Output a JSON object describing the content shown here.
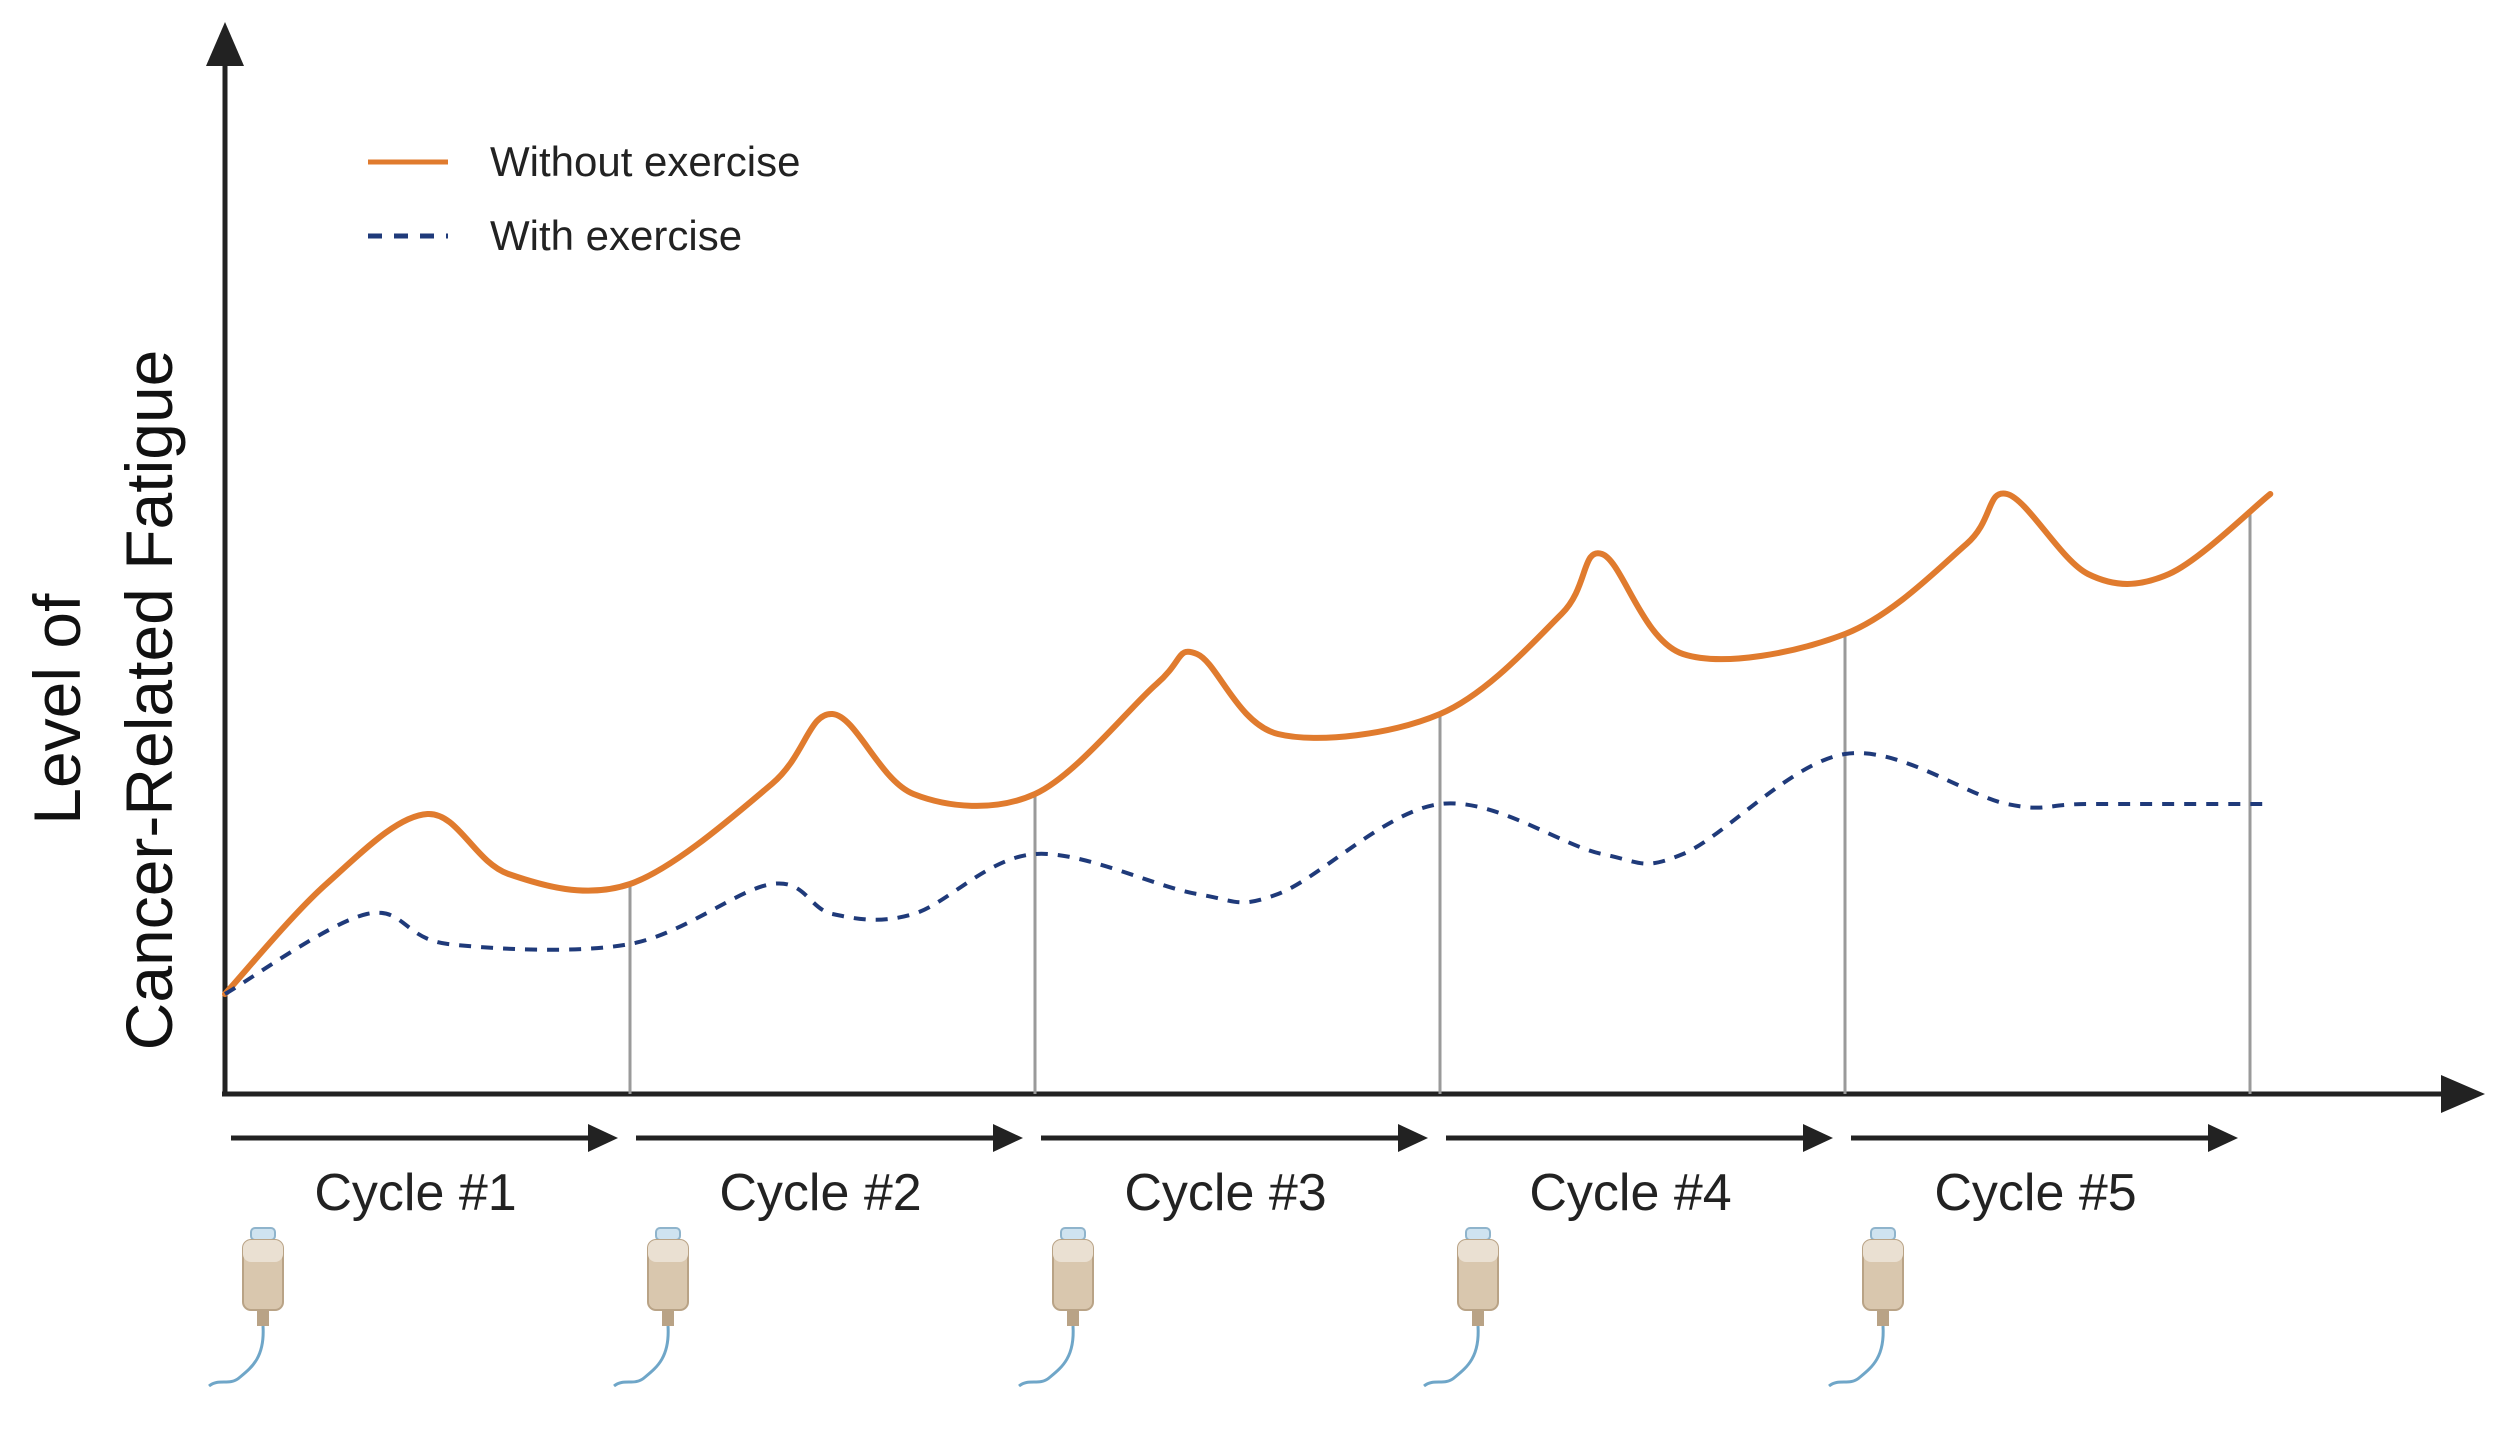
{
  "chart_data": {
    "type": "line",
    "title": "",
    "ylabel_lines": [
      "Level of",
      "Cancer-Related Fatigue"
    ],
    "xlabel": "",
    "categories": [
      "Cycle #1",
      "Cycle #2",
      "Cycle #3",
      "Cycle #4",
      "Cycle #5"
    ],
    "x_range": [
      0,
      5
    ],
    "y_range": [
      0,
      10
    ],
    "grid": false,
    "legend_position": "top-left",
    "series": [
      {
        "name": "Without exercise",
        "color": "#e07b2e",
        "style": "solid",
        "x": [
          0,
          0.25,
          0.5,
          0.7,
          1.0,
          1.35,
          1.5,
          1.7,
          2.0,
          2.3,
          2.4,
          2.6,
          3.0,
          3.3,
          3.4,
          3.6,
          4.0,
          4.3,
          4.4,
          4.6,
          4.8,
          5.05
        ],
        "y": [
          1.0,
          2.1,
          2.8,
          2.2,
          2.1,
          3.1,
          3.8,
          3.0,
          3.0,
          4.1,
          4.4,
          3.6,
          3.8,
          4.8,
          5.4,
          4.4,
          4.6,
          5.5,
          6.0,
          5.2,
          5.2,
          6.0
        ]
      },
      {
        "name": "With exercise",
        "color": "#1f3a7a",
        "style": "dashed",
        "x": [
          0,
          0.35,
          0.55,
          1.0,
          1.35,
          1.5,
          1.7,
          2.0,
          2.4,
          2.6,
          3.0,
          3.4,
          3.6,
          4.0,
          4.4,
          4.6,
          5.05
        ],
        "y": [
          1.0,
          1.8,
          1.5,
          1.5,
          2.1,
          1.8,
          1.8,
          2.4,
          2.0,
          2.0,
          2.9,
          2.4,
          2.4,
          3.4,
          2.9,
          2.9,
          2.9
        ]
      }
    ],
    "cycle_icon": "iv-bag-icon"
  }
}
